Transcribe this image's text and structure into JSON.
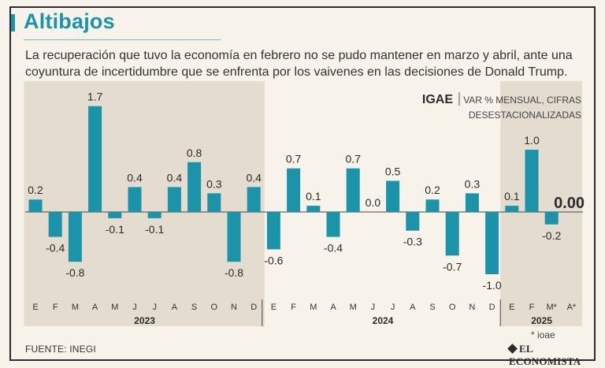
{
  "title": "Altibajos",
  "subtitle": "La recuperación que tuvo la economía en febrero no se pudo mantener en marzo y abril, ante una coyuntura de incertidumbre que se enfrenta por los vaivenes en las decisiones de Donald Trump.",
  "source": "FUENTE: INEGI",
  "logo": "EL ECONOMISTA",
  "footnote": "* ioae",
  "colors": {
    "bar": "#1b93a8",
    "shade": "#e3dccf",
    "title": "#1b93a8",
    "text": "#2b2b2b"
  },
  "chart_data": {
    "type": "bar",
    "indicator": "IGAE",
    "unit_line1": "VAR % MENSUAL, CIFRAS",
    "unit_line2": "DESESTACIONALIZADAS",
    "categories": [
      "E",
      "F",
      "M",
      "A",
      "M",
      "J",
      "J",
      "A",
      "S",
      "O",
      "N",
      "D",
      "E",
      "F",
      "M",
      "A",
      "M",
      "J",
      "J",
      "A",
      "S",
      "O",
      "N",
      "D",
      "E",
      "F",
      "M*",
      "A*"
    ],
    "values": [
      0.2,
      -0.4,
      -0.8,
      1.7,
      -0.1,
      0.4,
      -0.1,
      0.4,
      0.8,
      0.3,
      -0.8,
      0.4,
      -0.6,
      0.7,
      0.1,
      -0.4,
      0.7,
      0.0,
      0.5,
      -0.3,
      0.2,
      -0.7,
      0.3,
      -1.0,
      0.1,
      1.0,
      -0.2,
      0.0
    ],
    "labels": [
      "0.2",
      "-0.4",
      "-0.8",
      "1.7",
      "-0.1",
      "0.4",
      "-0.1",
      "0.4",
      "0.8",
      "0.3",
      "-0.8",
      "0.4",
      "-0.6",
      "0.7",
      "0.1",
      "-0.4",
      "0.7",
      "0.0",
      "0.5",
      "-0.3",
      "0.2",
      "-0.7",
      "0.3",
      "-1.0",
      "0.1",
      "1.0",
      "-0.2",
      "0.00"
    ],
    "years": [
      {
        "label": "2023",
        "start": 0,
        "end": 11,
        "shaded": true
      },
      {
        "label": "2024",
        "start": 12,
        "end": 23,
        "shaded": false
      },
      {
        "label": "2025",
        "start": 24,
        "end": 27,
        "shaded": true
      }
    ]
  }
}
